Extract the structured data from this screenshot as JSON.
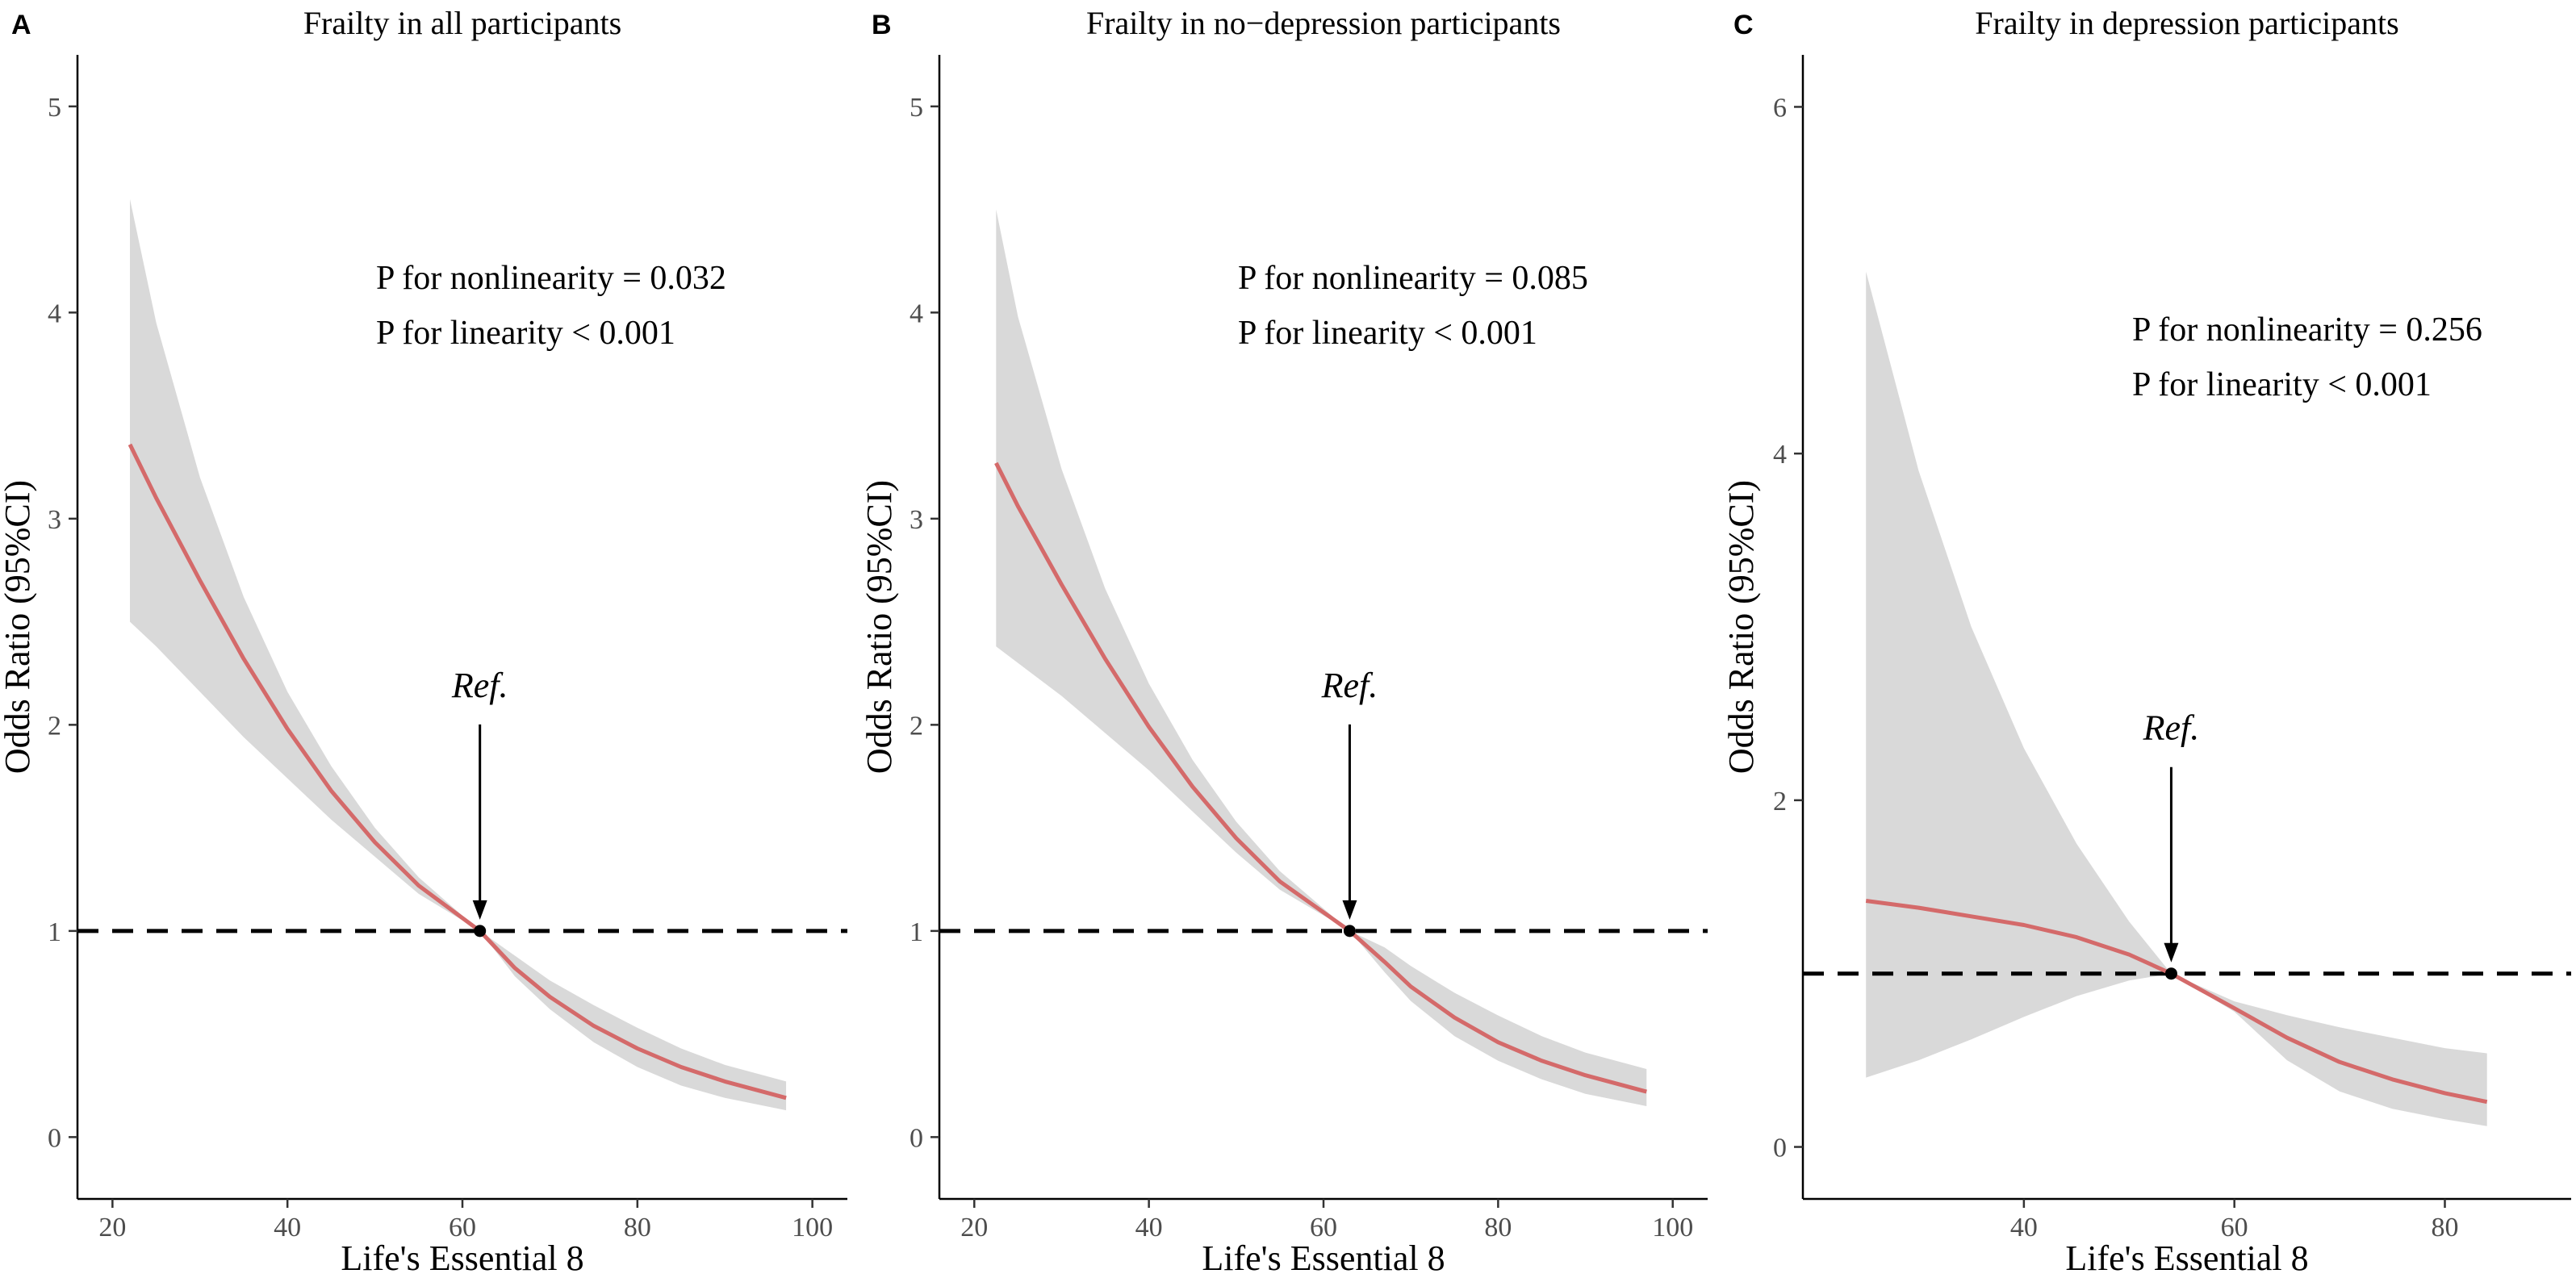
{
  "figure": {
    "line_color": "#d46a6a",
    "band_color": "#d9d9d9",
    "ref_line_color": "#000000"
  },
  "chart_data": [
    {
      "type": "line",
      "panel": "A",
      "title": "Frailty in all participants",
      "xlabel": "Life's Essential 8",
      "ylabel": "Odds Ratio (95%CI)",
      "xlim": [
        16,
        104
      ],
      "ylim": [
        -0.3,
        5.25
      ],
      "xticks": [
        20,
        40,
        60,
        80,
        100
      ],
      "yticks": [
        0,
        1,
        2,
        3,
        4,
        5
      ],
      "reference_x": 62,
      "reference_y": 1,
      "reference_label": "Ref.",
      "annotations": [
        "P for nonlinearity = 0.032",
        "P for linearity < 0.001"
      ],
      "series": [
        {
          "name": "Odds Ratio",
          "x": [
            22,
            25,
            30,
            35,
            40,
            45,
            50,
            55,
            62,
            66,
            70,
            75,
            80,
            85,
            90,
            97
          ],
          "values": [
            3.36,
            3.1,
            2.7,
            2.32,
            1.98,
            1.68,
            1.43,
            1.22,
            1.0,
            0.82,
            0.68,
            0.54,
            0.43,
            0.34,
            0.27,
            0.19
          ]
        },
        {
          "name": "95% CI upper",
          "x": [
            22,
            25,
            30,
            35,
            40,
            45,
            50,
            55,
            62,
            66,
            70,
            75,
            80,
            85,
            90,
            97
          ],
          "values": [
            4.55,
            3.95,
            3.2,
            2.62,
            2.16,
            1.8,
            1.5,
            1.26,
            1.0,
            0.88,
            0.76,
            0.64,
            0.53,
            0.43,
            0.35,
            0.27
          ]
        },
        {
          "name": "95% CI lower",
          "x": [
            22,
            25,
            30,
            35,
            40,
            45,
            50,
            55,
            62,
            66,
            70,
            75,
            80,
            85,
            90,
            97
          ],
          "values": [
            2.5,
            2.38,
            2.16,
            1.94,
            1.74,
            1.54,
            1.36,
            1.18,
            1.0,
            0.78,
            0.62,
            0.46,
            0.34,
            0.25,
            0.19,
            0.13
          ]
        }
      ]
    },
    {
      "type": "line",
      "panel": "B",
      "title": "Frailty in no−depression participants",
      "xlabel": "Life's Essential 8",
      "ylabel": "Odds Ratio (95%CI)",
      "xlim": [
        16,
        104
      ],
      "ylim": [
        -0.3,
        5.25
      ],
      "xticks": [
        20,
        40,
        60,
        80,
        100
      ],
      "yticks": [
        0,
        1,
        2,
        3,
        4,
        5
      ],
      "reference_x": 63,
      "reference_y": 1,
      "reference_label": "Ref.",
      "annotations": [
        "P for nonlinearity = 0.085",
        "P for linearity < 0.001"
      ],
      "series": [
        {
          "name": "Odds Ratio",
          "x": [
            22.5,
            25,
            30,
            35,
            40,
            45,
            50,
            55,
            63,
            67,
            70,
            75,
            80,
            85,
            90,
            97
          ],
          "values": [
            3.27,
            3.06,
            2.68,
            2.32,
            1.99,
            1.7,
            1.45,
            1.24,
            1.0,
            0.85,
            0.73,
            0.58,
            0.46,
            0.37,
            0.3,
            0.22
          ]
        },
        {
          "name": "95% CI upper",
          "x": [
            22.5,
            25,
            30,
            35,
            40,
            45,
            50,
            55,
            63,
            67,
            70,
            75,
            80,
            85,
            90,
            97
          ],
          "values": [
            4.5,
            3.98,
            3.24,
            2.66,
            2.2,
            1.83,
            1.53,
            1.29,
            1.0,
            0.92,
            0.83,
            0.7,
            0.59,
            0.49,
            0.41,
            0.33
          ]
        },
        {
          "name": "95% CI lower",
          "x": [
            22.5,
            25,
            30,
            35,
            40,
            45,
            50,
            55,
            63,
            67,
            70,
            75,
            80,
            85,
            90,
            97
          ],
          "values": [
            2.38,
            2.3,
            2.14,
            1.96,
            1.78,
            1.58,
            1.38,
            1.2,
            1.0,
            0.8,
            0.66,
            0.49,
            0.37,
            0.28,
            0.21,
            0.15
          ]
        }
      ]
    },
    {
      "type": "line",
      "panel": "C",
      "title": "Frailty in depression participants",
      "xlabel": "Life's Essential 8",
      "ylabel": "Odds Ratio (95%CI)",
      "xlim": [
        19,
        92
      ],
      "ylim": [
        -0.3,
        6.3
      ],
      "xticks": [
        40,
        60,
        80
      ],
      "yticks": [
        0,
        2,
        4,
        6
      ],
      "reference_x": 54,
      "reference_y": 1,
      "reference_label": "Ref.",
      "annotations": [
        "P for nonlinearity = 0.256",
        "P for linearity < 0.001"
      ],
      "series": [
        {
          "name": "Odds Ratio",
          "x": [
            25,
            30,
            35,
            40,
            45,
            50,
            54,
            60,
            65,
            70,
            75,
            80,
            84
          ],
          "values": [
            1.42,
            1.38,
            1.33,
            1.28,
            1.21,
            1.11,
            1.0,
            0.8,
            0.63,
            0.49,
            0.39,
            0.31,
            0.26
          ]
        },
        {
          "name": "95% CI upper",
          "x": [
            25,
            30,
            35,
            40,
            45,
            50,
            54,
            60,
            65,
            70,
            75,
            80,
            84
          ],
          "values": [
            5.05,
            3.9,
            3.0,
            2.3,
            1.75,
            1.3,
            1.0,
            0.84,
            0.76,
            0.69,
            0.63,
            0.57,
            0.54
          ]
        },
        {
          "name": "95% CI lower",
          "x": [
            25,
            30,
            35,
            40,
            45,
            50,
            54,
            60,
            65,
            70,
            75,
            80,
            84
          ],
          "values": [
            0.4,
            0.5,
            0.62,
            0.75,
            0.87,
            0.96,
            1.0,
            0.78,
            0.5,
            0.32,
            0.22,
            0.16,
            0.12
          ]
        }
      ]
    }
  ]
}
